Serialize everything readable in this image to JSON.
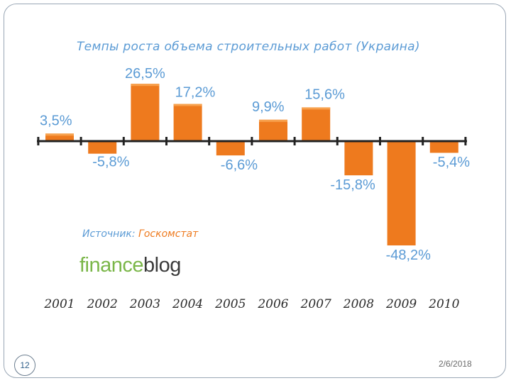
{
  "slide": {
    "number": "12",
    "date": "2/6/2018"
  },
  "source": {
    "label": "Источник:",
    "value": "Госкомстат"
  },
  "logo": {
    "part1": "finance",
    "part2": "blog"
  },
  "colors": {
    "bar": "#ee7a1e",
    "bar_top": "#f7a14d",
    "label_text": "#5b9bd5",
    "axis": "#222222",
    "year_text": "#2b2b2b"
  },
  "chart_data": {
    "type": "bar",
    "title": "Темпы роста объема строительных работ (Украина)",
    "categories": [
      "2001",
      "2002",
      "2003",
      "2004",
      "2005",
      "2006",
      "2007",
      "2008",
      "2009",
      "2010"
    ],
    "values": [
      3.5,
      -5.8,
      26.5,
      17.2,
      -6.6,
      9.9,
      15.6,
      -15.8,
      -48.2,
      -5.4
    ],
    "data_labels": [
      "3,5%",
      "-5,8%",
      "26,5%",
      "17,2%",
      "-6,6%",
      "9,9%",
      "15,6%",
      "-15,8%",
      "-48,2%",
      "-5,4%"
    ],
    "xlabel": "",
    "ylabel": "",
    "unit": "%",
    "grid": false,
    "legend": "none"
  }
}
